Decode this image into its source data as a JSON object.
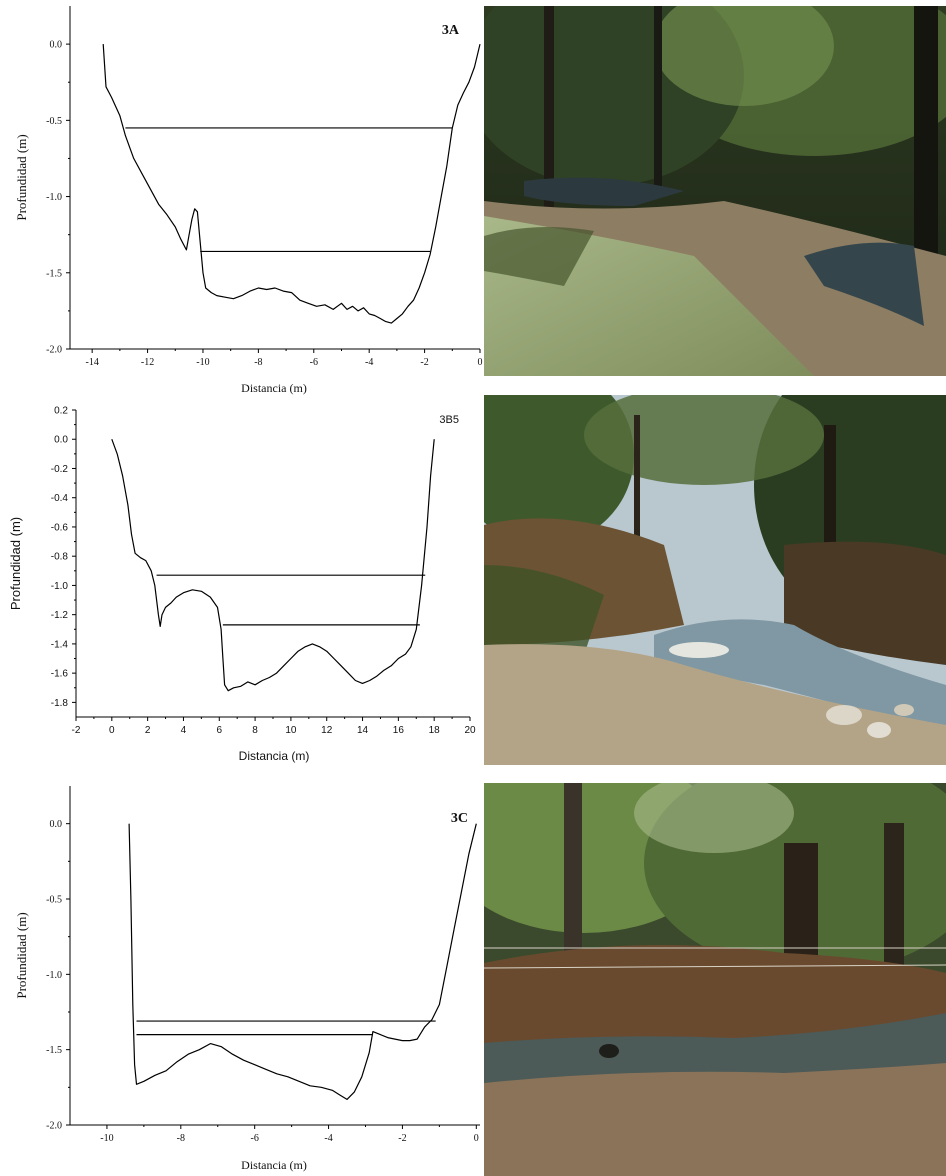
{
  "chart_data": [
    {
      "type": "line",
      "panel_label": "3A",
      "xlabel": "Distancia (m)",
      "ylabel": "Profundidad (m)",
      "xlim": [
        -14.8,
        0
      ],
      "ylim": [
        -2.0,
        0.25
      ],
      "xticks": [
        "-14",
        "-12",
        "-10",
        "-8",
        "-6",
        "-4",
        "-2",
        "0"
      ],
      "xtick_values": [
        -14,
        -12,
        -10,
        -8,
        -6,
        -4,
        -2,
        0
      ],
      "yticks": [
        "0.0",
        "-0.5",
        "-1.0",
        "-1.5",
        "-2.0"
      ],
      "ytick_values": [
        0.0,
        -0.5,
        -1.0,
        -1.5,
        -2.0
      ],
      "series": [
        {
          "x": [
            -13.6,
            -13.5,
            -13.3,
            -13.0,
            -12.8,
            -12.5,
            -12.2,
            -11.9,
            -11.6,
            -11.3,
            -11.0,
            -10.8,
            -10.6,
            -10.5,
            -10.4,
            -10.3,
            -10.2,
            -10.1,
            -10.0,
            -9.9,
            -9.7,
            -9.5,
            -9.2,
            -8.9,
            -8.6,
            -8.3,
            -8.0,
            -7.7,
            -7.4,
            -7.1,
            -6.8,
            -6.5,
            -6.2,
            -5.9,
            -5.6,
            -5.3,
            -5.0,
            -4.8,
            -4.6,
            -4.4,
            -4.2,
            -4.0,
            -3.8,
            -3.6,
            -3.4,
            -3.2,
            -3.0,
            -2.8,
            -2.6,
            -2.4,
            -2.2,
            -2.0,
            -1.8,
            -1.6,
            -1.4,
            -1.2,
            -1.0,
            -0.8,
            -0.6,
            -0.4,
            -0.2,
            0.0
          ],
          "y": [
            0.0,
            -0.28,
            -0.35,
            -0.47,
            -0.6,
            -0.75,
            -0.85,
            -0.95,
            -1.05,
            -1.12,
            -1.2,
            -1.28,
            -1.35,
            -1.25,
            -1.15,
            -1.08,
            -1.1,
            -1.3,
            -1.5,
            -1.6,
            -1.63,
            -1.65,
            -1.66,
            -1.67,
            -1.65,
            -1.62,
            -1.6,
            -1.61,
            -1.6,
            -1.62,
            -1.63,
            -1.68,
            -1.7,
            -1.72,
            -1.71,
            -1.74,
            -1.7,
            -1.74,
            -1.72,
            -1.75,
            -1.73,
            -1.77,
            -1.78,
            -1.8,
            -1.82,
            -1.83,
            -1.8,
            -1.77,
            -1.72,
            -1.68,
            -1.6,
            -1.5,
            -1.38,
            -1.2,
            -1.0,
            -0.8,
            -0.55,
            -0.4,
            -0.32,
            -0.25,
            -0.15,
            0.0
          ]
        }
      ],
      "levels": [
        {
          "y": -0.55,
          "x_from": -12.8,
          "x_to": -1.0
        },
        {
          "y": -1.36,
          "x_from": -10.1,
          "x_to": -1.8
        }
      ]
    },
    {
      "type": "line",
      "panel_label": "3B5",
      "xlabel": "Distancia (m)",
      "ylabel": "Profundidad (m)",
      "xlim": [
        -2,
        20
      ],
      "ylim": [
        -1.9,
        0.2
      ],
      "xticks": [
        "-2",
        "0",
        "2",
        "4",
        "6",
        "8",
        "10",
        "12",
        "14",
        "16",
        "18",
        "20"
      ],
      "xtick_values": [
        -2,
        0,
        2,
        4,
        6,
        8,
        10,
        12,
        14,
        16,
        18,
        20
      ],
      "yticks": [
        "0.2",
        "0.0",
        "-0.2",
        "-0.4",
        "-0.6",
        "-0.8",
        "-1.0",
        "-1.2",
        "-1.4",
        "-1.6",
        "-1.8"
      ],
      "ytick_values": [
        0.2,
        0.0,
        -0.2,
        -0.4,
        -0.6,
        -0.8,
        -1.0,
        -1.2,
        -1.4,
        -1.6,
        -1.8
      ],
      "series": [
        {
          "x": [
            0.0,
            0.3,
            0.6,
            0.9,
            1.1,
            1.3,
            1.6,
            1.9,
            2.2,
            2.4,
            2.6,
            2.7,
            2.8,
            3.0,
            3.3,
            3.6,
            4.0,
            4.5,
            5.0,
            5.5,
            5.9,
            6.1,
            6.2,
            6.3,
            6.5,
            6.8,
            7.2,
            7.6,
            8.0,
            8.4,
            8.8,
            9.2,
            9.6,
            10.0,
            10.4,
            10.8,
            11.2,
            11.6,
            12.0,
            12.4,
            12.8,
            13.2,
            13.6,
            14.0,
            14.4,
            14.8,
            15.2,
            15.6,
            16.0,
            16.4,
            16.7,
            17.0,
            17.3,
            17.6,
            17.8,
            18.0
          ],
          "y": [
            0.0,
            -0.1,
            -0.25,
            -0.45,
            -0.65,
            -0.78,
            -0.81,
            -0.83,
            -0.9,
            -1.0,
            -1.2,
            -1.28,
            -1.2,
            -1.15,
            -1.12,
            -1.08,
            -1.05,
            -1.03,
            -1.04,
            -1.08,
            -1.15,
            -1.3,
            -1.5,
            -1.68,
            -1.72,
            -1.7,
            -1.69,
            -1.66,
            -1.68,
            -1.65,
            -1.63,
            -1.6,
            -1.55,
            -1.5,
            -1.45,
            -1.42,
            -1.4,
            -1.42,
            -1.45,
            -1.5,
            -1.55,
            -1.6,
            -1.65,
            -1.67,
            -1.65,
            -1.62,
            -1.58,
            -1.55,
            -1.5,
            -1.47,
            -1.42,
            -1.3,
            -1.0,
            -0.6,
            -0.25,
            0.0
          ]
        }
      ],
      "levels": [
        {
          "y": -0.93,
          "x_from": 2.5,
          "x_to": 17.5
        },
        {
          "y": -1.27,
          "x_from": 6.2,
          "x_to": 17.2
        }
      ]
    },
    {
      "type": "line",
      "panel_label": "3C",
      "xlabel": "Distancia (m)",
      "ylabel": "Profundidad (m)",
      "xlim": [
        -11.0,
        0.1
      ],
      "ylim": [
        -2.0,
        0.25
      ],
      "xticks": [
        "-10",
        "-8",
        "-6",
        "-4",
        "-2",
        "0"
      ],
      "xtick_values": [
        -10,
        -8,
        -6,
        -4,
        -2,
        0
      ],
      "yticks": [
        "0.0",
        "-0.5",
        "-1.0",
        "-1.5",
        "-2.0"
      ],
      "ytick_values": [
        0.0,
        -0.5,
        -1.0,
        -1.5,
        -2.0
      ],
      "series": [
        {
          "x": [
            -9.4,
            -9.35,
            -9.3,
            -9.25,
            -9.2,
            -9.0,
            -8.7,
            -8.4,
            -8.1,
            -7.8,
            -7.5,
            -7.2,
            -6.9,
            -6.6,
            -6.3,
            -6.0,
            -5.7,
            -5.4,
            -5.1,
            -4.8,
            -4.5,
            -4.2,
            -3.9,
            -3.7,
            -3.5,
            -3.3,
            -3.1,
            -2.9,
            -2.8,
            -2.6,
            -2.4,
            -2.2,
            -2.0,
            -1.8,
            -1.6,
            -1.4,
            -1.2,
            -1.0,
            -0.8,
            -0.6,
            -0.4,
            -0.2,
            0.0
          ],
          "y": [
            0.0,
            -0.5,
            -1.2,
            -1.6,
            -1.73,
            -1.71,
            -1.67,
            -1.64,
            -1.58,
            -1.53,
            -1.5,
            -1.46,
            -1.48,
            -1.53,
            -1.57,
            -1.6,
            -1.63,
            -1.66,
            -1.68,
            -1.71,
            -1.74,
            -1.75,
            -1.77,
            -1.8,
            -1.83,
            -1.78,
            -1.68,
            -1.52,
            -1.38,
            -1.4,
            -1.42,
            -1.43,
            -1.44,
            -1.44,
            -1.43,
            -1.35,
            -1.3,
            -1.2,
            -0.95,
            -0.7,
            -0.45,
            -0.2,
            0.0
          ]
        }
      ],
      "levels": [
        {
          "y": -1.31,
          "x_from": -9.2,
          "x_to": -1.1
        },
        {
          "y": -1.4,
          "x_from": -9.2,
          "x_to": -2.8
        }
      ]
    }
  ],
  "colors": {
    "line": "#000000",
    "background": "#ffffff"
  }
}
